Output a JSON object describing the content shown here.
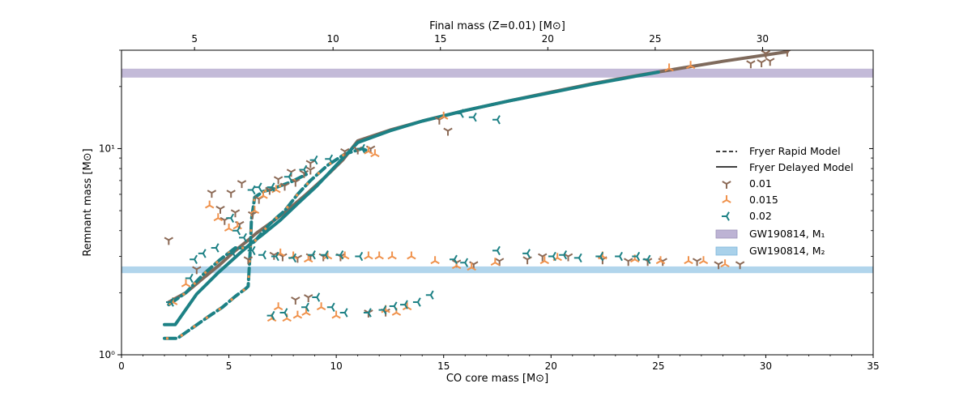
{
  "chart_data": {
    "type": "scatter",
    "x_axis": {
      "label": "CO core mass [M⊙]",
      "range": [
        0,
        35
      ],
      "ticks": [
        0,
        5,
        10,
        15,
        20,
        25,
        30,
        35
      ]
    },
    "top_axis": {
      "label": "Final mass (Z=0.01) [M⊙]",
      "tick_labels": [
        "5",
        "10",
        "15",
        "20",
        "25",
        "30"
      ],
      "tick_positions_co": [
        3.4,
        9.85,
        14.85,
        19.85,
        24.85,
        29.85
      ]
    },
    "y_axis": {
      "label": "Remnant mass [M⊙]",
      "scale": "log",
      "range": [
        1,
        30
      ],
      "tick_labels": [
        {
          "value": 1,
          "label": "10⁰"
        },
        {
          "value": 10,
          "label": "10¹"
        }
      ]
    },
    "bands": [
      {
        "name": "GW190814, M₁",
        "y_range": [
          22.2,
          24.3
        ],
        "color": "#bdb3d4"
      },
      {
        "name": "GW190814, M₂",
        "y_range": [
          2.5,
          2.67
        ],
        "color": "#a9d1ea"
      }
    ],
    "models": [
      {
        "name": "Fryer Rapid Model",
        "style": "dashed"
      },
      {
        "name": "Fryer Delayed Model",
        "style": "solid"
      }
    ],
    "curves": [
      {
        "color": "#7f6a5c",
        "style": "solid",
        "x": [
          2.2,
          3.0,
          3.8,
          4.6,
          5.3,
          5.9,
          6.3,
          7.0,
          7.8,
          8.6,
          9.5,
          10.3,
          11.0,
          12.5,
          14.0,
          16.0,
          18.0,
          20.0,
          22.0,
          24.0,
          26.0,
          28.0,
          31.0
        ],
        "y": [
          1.8,
          2.0,
          2.35,
          2.75,
          3.2,
          3.6,
          3.9,
          4.4,
          5.1,
          6.0,
          7.3,
          8.8,
          10.9,
          12.3,
          13.6,
          15.3,
          17.0,
          18.8,
          20.7,
          22.6,
          24.5,
          26.5,
          29.5
        ]
      },
      {
        "color": "#1d8185",
        "style": "solid",
        "x": [
          2.0,
          2.5,
          3.5,
          4.5,
          5.5,
          6.0,
          6.6,
          7.4,
          8.2,
          9.1,
          10.0,
          11.0,
          12.5,
          14.0,
          16.0,
          18.0,
          20.0,
          22.0,
          24.0,
          25.0
        ],
        "y": [
          1.4,
          1.4,
          1.97,
          2.5,
          3.1,
          3.45,
          3.85,
          4.5,
          5.4,
          6.6,
          8.3,
          10.7,
          12.2,
          13.6,
          15.3,
          17.0,
          18.7,
          20.6,
          22.5,
          23.5
        ]
      },
      {
        "color": "#1d8185",
        "style": "dashed",
        "x": [
          2.0,
          2.6,
          3.3,
          4.0,
          4.7,
          5.3,
          5.8,
          5.9,
          6.0,
          6.05,
          6.2,
          6.6,
          7.0,
          7.4,
          7.9,
          8.6
        ],
        "y": [
          1.2,
          1.2,
          1.35,
          1.52,
          1.7,
          1.92,
          2.1,
          2.15,
          3.3,
          4.5,
          5.8,
          6.2,
          6.35,
          6.6,
          6.9,
          7.5
        ]
      },
      {
        "color": "#1d8185",
        "style": "dashed",
        "x": [
          2.2,
          3.0,
          3.8,
          4.6,
          5.3,
          5.8,
          6.2,
          6.8,
          7.2,
          7.6,
          8.2,
          8.8,
          9.6,
          10.4,
          11.2,
          11.5
        ],
        "y": [
          1.75,
          2.0,
          2.45,
          2.9,
          3.3,
          3.3,
          3.55,
          4.2,
          4.6,
          5.0,
          6.0,
          7.0,
          8.3,
          9.4,
          10.0,
          9.7
        ]
      }
    ],
    "series": [
      {
        "name": "0.01",
        "color": "#8c6a56",
        "marker": "tri_down",
        "points": [
          [
            2.2,
            3.6
          ],
          [
            3.5,
            2.6
          ],
          [
            4.2,
            6.1
          ],
          [
            4.6,
            5.1
          ],
          [
            4.8,
            4.5
          ],
          [
            5.1,
            6.1
          ],
          [
            5.3,
            4.9
          ],
          [
            5.5,
            4.3
          ],
          [
            5.6,
            6.8
          ],
          [
            5.9,
            2.9
          ],
          [
            6.1,
            4.8
          ],
          [
            6.4,
            5.7
          ],
          [
            6.9,
            6.3
          ],
          [
            7.3,
            7.1
          ],
          [
            7.6,
            6.6
          ],
          [
            7.9,
            7.7
          ],
          [
            8.1,
            6.9
          ],
          [
            8.5,
            7.6
          ],
          [
            8.8,
            7.9
          ],
          [
            8.8,
            8.5
          ],
          [
            10.4,
            9.7
          ],
          [
            11.0,
            9.9
          ],
          [
            11.6,
            10.0
          ],
          [
            7.1,
            3.05
          ],
          [
            7.5,
            3.0
          ],
          [
            8.2,
            2.95
          ],
          [
            8.8,
            3.0
          ],
          [
            9.4,
            3.0
          ],
          [
            10.2,
            3.0
          ],
          [
            11.5,
            1.6
          ],
          [
            12.3,
            1.62
          ],
          [
            8.1,
            1.85
          ],
          [
            8.7,
            1.9
          ],
          [
            14.8,
            13.8
          ],
          [
            15.2,
            12.2
          ],
          [
            15.6,
            2.8
          ],
          [
            16.4,
            2.75
          ],
          [
            17.6,
            2.85
          ],
          [
            18.9,
            2.9
          ],
          [
            19.6,
            3.0
          ],
          [
            20.8,
            3.0
          ],
          [
            22.4,
            2.9
          ],
          [
            23.6,
            2.85
          ],
          [
            24.5,
            2.85
          ],
          [
            25.2,
            2.85
          ],
          [
            26.8,
            2.85
          ],
          [
            27.8,
            2.75
          ],
          [
            28.8,
            2.75
          ],
          [
            29.3,
            25.9
          ],
          [
            29.8,
            26.2
          ],
          [
            30.2,
            26.6
          ],
          [
            30.0,
            29.0
          ],
          [
            31.0,
            29.5
          ]
        ]
      },
      {
        "name": "0.015",
        "color": "#f0924c",
        "marker": "tri_up",
        "points": [
          [
            2.4,
            1.8
          ],
          [
            3.0,
            2.2
          ],
          [
            4.1,
            5.3
          ],
          [
            4.5,
            4.6
          ],
          [
            5.0,
            4.1
          ],
          [
            5.4,
            4.2
          ],
          [
            6.2,
            5.0
          ],
          [
            6.6,
            5.9
          ],
          [
            7.2,
            6.3
          ],
          [
            7.4,
            3.1
          ],
          [
            7.0,
            1.5
          ],
          [
            7.3,
            1.7
          ],
          [
            7.7,
            1.5
          ],
          [
            8.2,
            1.55
          ],
          [
            8.6,
            1.6
          ],
          [
            9.3,
            1.7
          ],
          [
            10.0,
            1.55
          ],
          [
            8.0,
            3.0
          ],
          [
            8.7,
            2.9
          ],
          [
            9.6,
            3.0
          ],
          [
            10.4,
            3.0
          ],
          [
            11.5,
            3.0
          ],
          [
            12.0,
            3.0
          ],
          [
            12.6,
            3.0
          ],
          [
            13.5,
            3.0
          ],
          [
            12.3,
            1.65
          ],
          [
            12.8,
            1.6
          ],
          [
            13.3,
            1.7
          ],
          [
            14.6,
            2.85
          ],
          [
            15.6,
            2.7
          ],
          [
            16.3,
            2.65
          ],
          [
            17.4,
            2.8
          ],
          [
            19.7,
            2.85
          ],
          [
            20.3,
            2.95
          ],
          [
            22.4,
            3.0
          ],
          [
            23.9,
            2.9
          ],
          [
            25.1,
            2.85
          ],
          [
            26.4,
            2.85
          ],
          [
            27.1,
            2.85
          ],
          [
            28.1,
            2.75
          ],
          [
            11.5,
            9.7
          ],
          [
            11.8,
            9.4
          ],
          [
            15.0,
            14.3
          ],
          [
            25.5,
            24.5
          ],
          [
            26.5,
            25.2
          ]
        ]
      },
      {
        "name": "0.02",
        "color": "#1d8185",
        "marker": "tri_left",
        "points": [
          [
            2.3,
            1.8
          ],
          [
            3.2,
            2.35
          ],
          [
            3.4,
            2.9
          ],
          [
            3.8,
            3.1
          ],
          [
            4.4,
            3.3
          ],
          [
            5.1,
            4.6
          ],
          [
            5.4,
            4.0
          ],
          [
            5.7,
            3.7
          ],
          [
            5.2,
            3.1
          ],
          [
            6.1,
            6.3
          ],
          [
            6.4,
            6.5
          ],
          [
            7.0,
            6.5
          ],
          [
            7.8,
            7.3
          ],
          [
            8.5,
            7.9
          ],
          [
            9.0,
            8.8
          ],
          [
            9.7,
            8.9
          ],
          [
            6.1,
            3.2
          ],
          [
            6.6,
            3.05
          ],
          [
            7.2,
            3.0
          ],
          [
            8.0,
            2.95
          ],
          [
            8.9,
            3.05
          ],
          [
            9.5,
            3.05
          ],
          [
            10.2,
            3.05
          ],
          [
            11.1,
            3.0
          ],
          [
            7.0,
            1.55
          ],
          [
            7.6,
            1.6
          ],
          [
            8.6,
            1.7
          ],
          [
            9.1,
            1.9
          ],
          [
            9.8,
            1.7
          ],
          [
            10.4,
            1.6
          ],
          [
            11.5,
            1.6
          ],
          [
            12.2,
            1.65
          ],
          [
            12.7,
            1.72
          ],
          [
            13.2,
            1.75
          ],
          [
            13.8,
            1.8
          ],
          [
            14.4,
            1.95
          ],
          [
            15.5,
            2.9
          ],
          [
            16.0,
            2.8
          ],
          [
            17.5,
            3.2
          ],
          [
            18.9,
            3.1
          ],
          [
            20.1,
            3.0
          ],
          [
            20.6,
            3.05
          ],
          [
            21.3,
            2.95
          ],
          [
            22.3,
            3.0
          ],
          [
            23.2,
            3.0
          ],
          [
            24.0,
            3.0
          ],
          [
            24.5,
            2.9
          ],
          [
            15.8,
            14.8
          ],
          [
            16.4,
            14.2
          ],
          [
            17.5,
            13.8
          ],
          [
            11.2,
            10.0
          ]
        ]
      }
    ],
    "legend_position": "center-right"
  }
}
